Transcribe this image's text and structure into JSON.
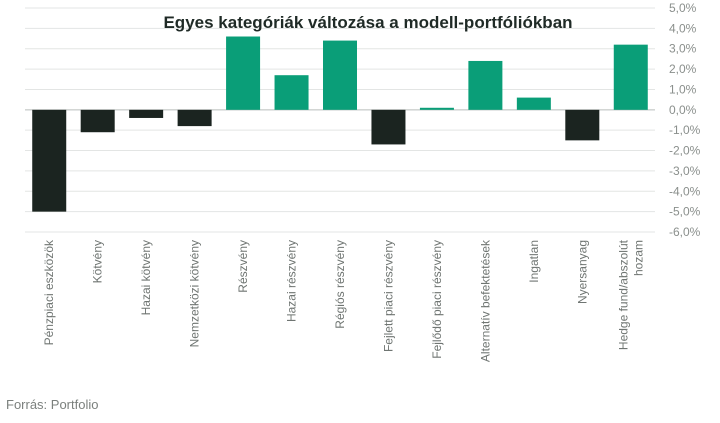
{
  "chart_data": {
    "type": "bar",
    "title": "Egyes kategóriák változása a modell-portfóliókban",
    "categories": [
      [
        "Pénzpiaci eszközök"
      ],
      [
        "Kötvény"
      ],
      [
        "Hazai kötvény"
      ],
      [
        "Nemzetközi kötvény"
      ],
      [
        "Részvény"
      ],
      [
        "Hazai részvény"
      ],
      [
        "Régiós részvény"
      ],
      [
        "Fejlett piaci részvény"
      ],
      [
        "Fejlődő piaci részvény"
      ],
      [
        "Alternatív befektetések"
      ],
      [
        "Ingatlan"
      ],
      [
        "Nyersanyag"
      ],
      [
        "Hedge fund/abszolút",
        "hozam"
      ]
    ],
    "values": [
      -5.0,
      -1.1,
      -0.4,
      -0.8,
      3.6,
      1.7,
      3.4,
      -1.7,
      0.1,
      2.4,
      0.6,
      -1.5,
      3.2
    ],
    "ylim": [
      -6,
      5
    ],
    "yticks": [
      "5,0%",
      "4,0%",
      "3,0%",
      "2,0%",
      "1,0%",
      "0,0%",
      "-1,0%",
      "-2,0%",
      "-3,0%",
      "-4,0%",
      "-5,0%",
      "-6,0%"
    ],
    "ytick_values": [
      5,
      4,
      3,
      2,
      1,
      0,
      -1,
      -2,
      -3,
      -4,
      -5,
      -6
    ],
    "axis_side": "right",
    "grid": true,
    "legend": "none",
    "colors": {
      "positive": "#0a9e78",
      "negative": "#1b2420"
    }
  },
  "source": "Forrás: Portfolio"
}
